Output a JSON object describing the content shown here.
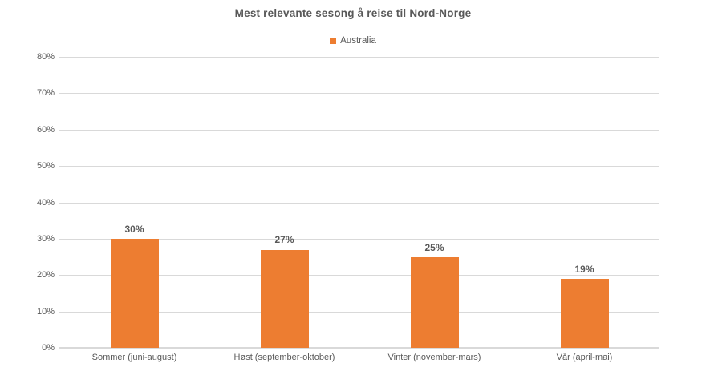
{
  "chart": {
    "title": "Mest relevante sesong å reise til Nord-Norge",
    "legend": {
      "label": "Australia"
    }
  },
  "chart_data": {
    "type": "bar",
    "title": "Mest relevante sesong å reise til Nord-Norge",
    "categories": [
      "Sommer (juni-august)",
      "Høst (september-oktober)",
      "Vinter (november-mars)",
      "Vår (april-mai)"
    ],
    "series": [
      {
        "name": "Australia",
        "values": [
          30,
          27,
          25,
          19
        ],
        "color": "#ED7D31"
      }
    ],
    "data_labels": [
      "30%",
      "27%",
      "25%",
      "19%"
    ],
    "xlabel": "",
    "ylabel": "",
    "ylim": [
      0,
      80
    ],
    "ytick_step": 10,
    "ytick_labels": [
      "0%",
      "10%",
      "20%",
      "30%",
      "40%",
      "50%",
      "60%",
      "70%",
      "80%"
    ],
    "grid": "horizontal",
    "legend_position": "top",
    "colors": {
      "bar": "#ED7D31",
      "text": "#595959",
      "gridline": "#D9D9D9",
      "background": "#FFFFFF"
    }
  }
}
